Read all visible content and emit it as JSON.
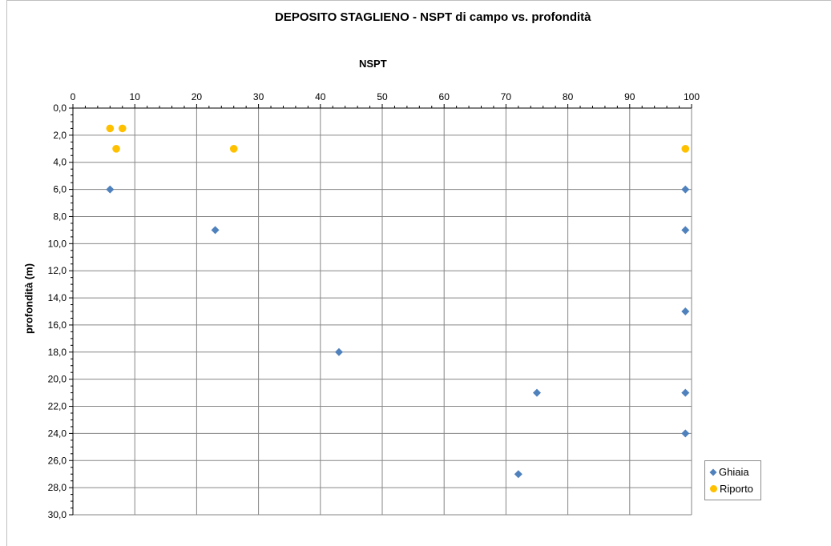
{
  "chart_data": {
    "type": "scatter",
    "title": "DEPOSITO STAGLIENO - NSPT di campo vs. profondità",
    "xlabel": "NSPT",
    "ylabel": "profondità (m)",
    "xlim": [
      0,
      100
    ],
    "ylim": [
      0,
      30
    ],
    "y_inverted": true,
    "x_axis_position": "top",
    "x_ticks": [
      "0",
      "10",
      "20",
      "30",
      "40",
      "50",
      "60",
      "70",
      "80",
      "90",
      "100"
    ],
    "y_ticks": [
      "0,0",
      "2,0",
      "4,0",
      "6,0",
      "8,0",
      "10,0",
      "12,0",
      "14,0",
      "16,0",
      "18,0",
      "20,0",
      "22,0",
      "24,0",
      "26,0",
      "28,0",
      "30,0"
    ],
    "grid": true,
    "legend_position": "bottom-right",
    "series": [
      {
        "name": "Ghiaia",
        "marker": "diamond",
        "color": "#4f81bd",
        "points": [
          {
            "x": 6,
            "y": 6
          },
          {
            "x": 99,
            "y": 6
          },
          {
            "x": 23,
            "y": 9
          },
          {
            "x": 99,
            "y": 9
          },
          {
            "x": 99,
            "y": 15
          },
          {
            "x": 43,
            "y": 18
          },
          {
            "x": 75,
            "y": 21
          },
          {
            "x": 99,
            "y": 21
          },
          {
            "x": 99,
            "y": 24
          },
          {
            "x": 72,
            "y": 27
          }
        ]
      },
      {
        "name": "Riporto",
        "marker": "circle",
        "color": "#ffc000",
        "points": [
          {
            "x": 6,
            "y": 1.5
          },
          {
            "x": 8,
            "y": 1.5
          },
          {
            "x": 7,
            "y": 3
          },
          {
            "x": 26,
            "y": 3
          },
          {
            "x": 99,
            "y": 3
          }
        ]
      }
    ]
  }
}
